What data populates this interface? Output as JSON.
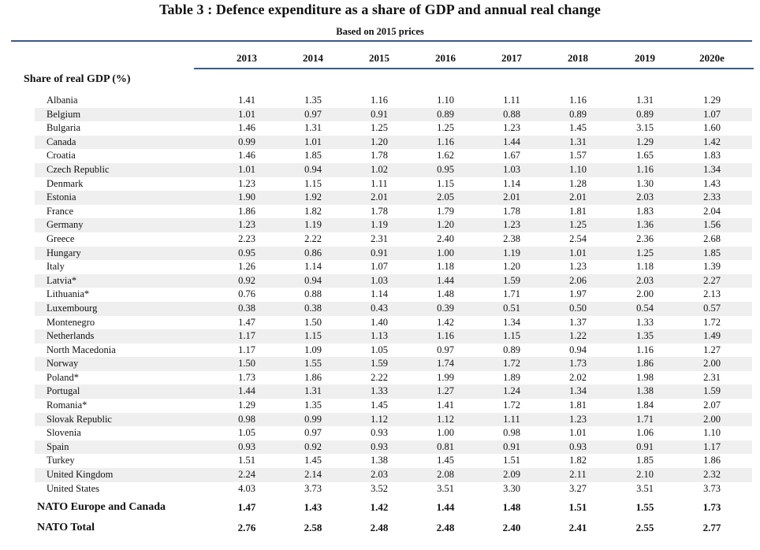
{
  "title": "Table 3 : Defence expenditure as a share of GDP and annual real change",
  "subtitle": "Based on 2015 prices",
  "years": [
    "2013",
    "2014",
    "2015",
    "2016",
    "2017",
    "2018",
    "2019",
    "2020e"
  ],
  "section_label": "Share of real GDP (%)",
  "rows": [
    {
      "country": "Albania",
      "values": [
        "1.41",
        "1.35",
        "1.16",
        "1.10",
        "1.11",
        "1.16",
        "1.31",
        "1.29"
      ]
    },
    {
      "country": "Belgium",
      "values": [
        "1.01",
        "0.97",
        "0.91",
        "0.89",
        "0.88",
        "0.89",
        "0.89",
        "1.07"
      ]
    },
    {
      "country": "Bulgaria",
      "values": [
        "1.46",
        "1.31",
        "1.25",
        "1.25",
        "1.23",
        "1.45",
        "3.15",
        "1.60"
      ]
    },
    {
      "country": "Canada",
      "values": [
        "0.99",
        "1.01",
        "1.20",
        "1.16",
        "1.44",
        "1.31",
        "1.29",
        "1.42"
      ]
    },
    {
      "country": "Croatia",
      "values": [
        "1.46",
        "1.85",
        "1.78",
        "1.62",
        "1.67",
        "1.57",
        "1.65",
        "1.83"
      ]
    },
    {
      "country": "Czech Republic",
      "values": [
        "1.01",
        "0.94",
        "1.02",
        "0.95",
        "1.03",
        "1.10",
        "1.16",
        "1.34"
      ]
    },
    {
      "country": "Denmark",
      "values": [
        "1.23",
        "1.15",
        "1.11",
        "1.15",
        "1.14",
        "1.28",
        "1.30",
        "1.43"
      ]
    },
    {
      "country": "Estonia",
      "values": [
        "1.90",
        "1.92",
        "2.01",
        "2.05",
        "2.01",
        "2.01",
        "2.03",
        "2.33"
      ]
    },
    {
      "country": "France",
      "values": [
        "1.86",
        "1.82",
        "1.78",
        "1.79",
        "1.78",
        "1.81",
        "1.83",
        "2.04"
      ]
    },
    {
      "country": "Germany",
      "values": [
        "1.23",
        "1.19",
        "1.19",
        "1.20",
        "1.23",
        "1.25",
        "1.36",
        "1.56"
      ]
    },
    {
      "country": "Greece",
      "values": [
        "2.23",
        "2.22",
        "2.31",
        "2.40",
        "2.38",
        "2.54",
        "2.36",
        "2.68"
      ]
    },
    {
      "country": "Hungary",
      "values": [
        "0.95",
        "0.86",
        "0.91",
        "1.00",
        "1.19",
        "1.01",
        "1.25",
        "1.85"
      ]
    },
    {
      "country": "Italy",
      "values": [
        "1.26",
        "1.14",
        "1.07",
        "1.18",
        "1.20",
        "1.23",
        "1.18",
        "1.39"
      ]
    },
    {
      "country": "Latvia*",
      "values": [
        "0.92",
        "0.94",
        "1.03",
        "1.44",
        "1.59",
        "2.06",
        "2.03",
        "2.27"
      ]
    },
    {
      "country": "Lithuania*",
      "values": [
        "0.76",
        "0.88",
        "1.14",
        "1.48",
        "1.71",
        "1.97",
        "2.00",
        "2.13"
      ]
    },
    {
      "country": "Luxembourg",
      "values": [
        "0.38",
        "0.38",
        "0.43",
        "0.39",
        "0.51",
        "0.50",
        "0.54",
        "0.57"
      ]
    },
    {
      "country": "Montenegro",
      "values": [
        "1.47",
        "1.50",
        "1.40",
        "1.42",
        "1.34",
        "1.37",
        "1.33",
        "1.72"
      ]
    },
    {
      "country": "Netherlands",
      "values": [
        "1.17",
        "1.15",
        "1.13",
        "1.16",
        "1.15",
        "1.22",
        "1.35",
        "1.49"
      ]
    },
    {
      "country": "North Macedonia",
      "values": [
        "1.17",
        "1.09",
        "1.05",
        "0.97",
        "0.89",
        "0.94",
        "1.16",
        "1.27"
      ]
    },
    {
      "country": "Norway",
      "values": [
        "1.50",
        "1.55",
        "1.59",
        "1.74",
        "1.72",
        "1.73",
        "1.86",
        "2.00"
      ]
    },
    {
      "country": "Poland*",
      "values": [
        "1.73",
        "1.86",
        "2.22",
        "1.99",
        "1.89",
        "2.02",
        "1.98",
        "2.31"
      ]
    },
    {
      "country": "Portugal",
      "values": [
        "1.44",
        "1.31",
        "1.33",
        "1.27",
        "1.24",
        "1.34",
        "1.38",
        "1.59"
      ]
    },
    {
      "country": "Romania*",
      "values": [
        "1.29",
        "1.35",
        "1.45",
        "1.41",
        "1.72",
        "1.81",
        "1.84",
        "2.07"
      ]
    },
    {
      "country": "Slovak Republic",
      "values": [
        "0.98",
        "0.99",
        "1.12",
        "1.12",
        "1.11",
        "1.23",
        "1.71",
        "2.00"
      ]
    },
    {
      "country": "Slovenia",
      "values": [
        "1.05",
        "0.97",
        "0.93",
        "1.00",
        "0.98",
        "1.01",
        "1.06",
        "1.10"
      ]
    },
    {
      "country": "Spain",
      "values": [
        "0.93",
        "0.92",
        "0.93",
        "0.81",
        "0.91",
        "0.93",
        "0.91",
        "1.17"
      ]
    },
    {
      "country": "Turkey",
      "values": [
        "1.51",
        "1.45",
        "1.38",
        "1.45",
        "1.51",
        "1.82",
        "1.85",
        "1.86"
      ]
    },
    {
      "country": "United Kingdom",
      "values": [
        "2.24",
        "2.14",
        "2.03",
        "2.08",
        "2.09",
        "2.11",
        "2.10",
        "2.32"
      ]
    },
    {
      "country": "United States",
      "values": [
        "4.03",
        "3.73",
        "3.52",
        "3.51",
        "3.30",
        "3.27",
        "3.51",
        "3.73"
      ]
    }
  ],
  "totals": [
    {
      "label": "NATO Europe and Canada",
      "values": [
        "1.47",
        "1.43",
        "1.42",
        "1.44",
        "1.48",
        "1.51",
        "1.55",
        "1.73"
      ]
    },
    {
      "label": "NATO Total",
      "values": [
        "2.76",
        "2.58",
        "2.48",
        "2.48",
        "2.40",
        "2.41",
        "2.55",
        "2.77"
      ]
    }
  ],
  "colors": {
    "rule": "#3b5b87",
    "row_shade": "#efefef"
  }
}
